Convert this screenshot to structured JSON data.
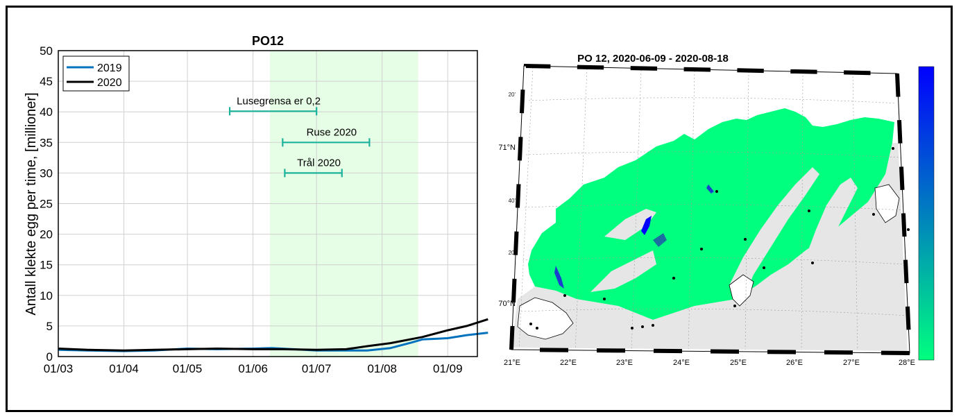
{
  "chart_data": [
    {
      "type": "line",
      "title": "PO12",
      "xlabel": "",
      "ylabel": "Antall klekte egg per time, [millioner]",
      "x_tick_labels": [
        "01/03",
        "01/04",
        "01/05",
        "01/06",
        "01/07",
        "01/08",
        "01/09"
      ],
      "xlim_days": [
        0,
        198
      ],
      "ylim": [
        0,
        50
      ],
      "y_ticks": [
        0,
        5,
        10,
        15,
        20,
        25,
        30,
        35,
        40,
        45,
        50
      ],
      "grid": true,
      "legend_position": "top-left",
      "shaded_period": {
        "start": "2020-06-09",
        "end": "2020-08-18",
        "color": "#e6fde6"
      },
      "series": [
        {
          "name": "2019",
          "color": "#0072bd",
          "points": [
            [
              "01/03",
              1.1
            ],
            [
              "15/03",
              1.0
            ],
            [
              "01/04",
              0.9
            ],
            [
              "15/04",
              1.0
            ],
            [
              "01/05",
              1.3
            ],
            [
              "15/05",
              1.2
            ],
            [
              "01/06",
              1.3
            ],
            [
              "10/06",
              1.4
            ],
            [
              "20/06",
              1.2
            ],
            [
              "01/07",
              1.0
            ],
            [
              "15/07",
              1.0
            ],
            [
              "25/07",
              1.0
            ],
            [
              "05/08",
              1.4
            ],
            [
              "15/08",
              2.3
            ],
            [
              "20/08",
              2.8
            ],
            [
              "01/09",
              3.0
            ],
            [
              "10/09",
              3.5
            ],
            [
              "20/09",
              3.9
            ]
          ]
        },
        {
          "name": "2020",
          "color": "#000000",
          "points": [
            [
              "01/03",
              1.3
            ],
            [
              "15/03",
              1.1
            ],
            [
              "01/04",
              1.0
            ],
            [
              "15/04",
              1.1
            ],
            [
              "01/05",
              1.2
            ],
            [
              "15/05",
              1.3
            ],
            [
              "01/06",
              1.2
            ],
            [
              "15/06",
              1.2
            ],
            [
              "01/07",
              1.1
            ],
            [
              "15/07",
              1.2
            ],
            [
              "25/07",
              1.7
            ],
            [
              "05/08",
              2.2
            ],
            [
              "20/08",
              3.2
            ],
            [
              "01/09",
              4.3
            ],
            [
              "10/09",
              5.0
            ],
            [
              "20/09",
              6.1
            ]
          ]
        }
      ],
      "annotations": [
        {
          "label": "Lusegrensa er 0,2",
          "y": 40.1,
          "start": "2020-05-21",
          "end": "2020-07-01",
          "color": "#1ab39a"
        },
        {
          "label": "Ruse 2020",
          "y": 35.0,
          "start": "2020-06-15",
          "end": "2020-07-26",
          "color": "#1ab39a"
        },
        {
          "label": "Trål 2020",
          "y": 30.0,
          "start": "2020-06-16",
          "end": "2020-07-13",
          "color": "#1ab39a"
        }
      ]
    },
    {
      "type": "heatmap",
      "title": "PO 12, 2020-06-09 - 2020-08-18",
      "colorbar": {
        "colors": [
          "#0000ff",
          "#00ff7f"
        ]
      },
      "lon_labels": [
        "21",
        "22",
        "23",
        "24",
        "25",
        "26",
        "27",
        "28"
      ],
      "lon_suffix": "°E",
      "lat_labels": [
        {
          "deg": "70",
          "suffix": "°N",
          "minor": false
        },
        {
          "deg": "20'",
          "suffix": "",
          "minor": true
        },
        {
          "deg": "40'",
          "suffix": "",
          "minor": true
        },
        {
          "deg": "71",
          "suffix": "°N",
          "minor": false
        },
        {
          "deg": "20'",
          "suffix": "",
          "minor": true
        }
      ],
      "colors": {
        "land": "#e6e6e6",
        "sea": "#00ff7f",
        "sea_dark": "#0000ff"
      }
    }
  ]
}
